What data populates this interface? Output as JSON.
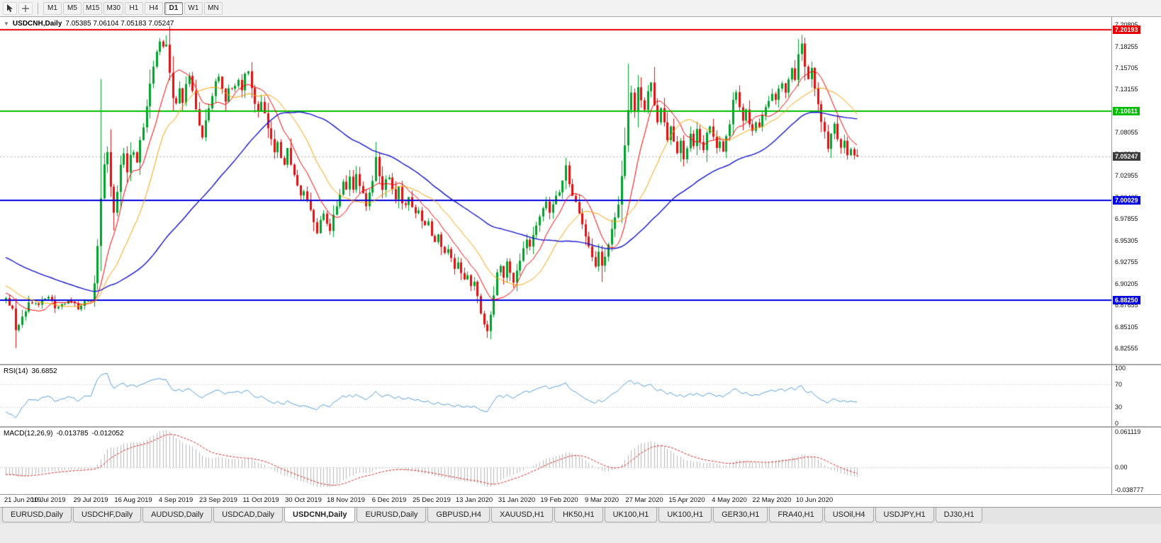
{
  "toolbar": {
    "timeframes": [
      "M1",
      "M5",
      "M15",
      "M30",
      "H1",
      "H4",
      "D1",
      "W1",
      "MN"
    ],
    "active_timeframe": "D1"
  },
  "chart_header": {
    "collapse_icon": "▼",
    "symbol": "USDCNH,Daily",
    "ohlc": "7.05385 7.06104 7.05183 7.05247"
  },
  "rsi_panel": {
    "label": "RSI(14)",
    "value": "36.6852"
  },
  "macd_panel": {
    "label": "MACD(12,26,9)",
    "value_main": "-0.013785",
    "value_signal": "-0.012052"
  },
  "tabs": {
    "active_index": 4,
    "items": [
      "EURUSD,Daily",
      "USDCHF,Daily",
      "AUDUSD,Daily",
      "USDCAD,Daily",
      "USDCNH,Daily",
      "EURUSD,Daily",
      "GBPUSD,H4",
      "XAUUSD,H1",
      "HK50,H1",
      "UK100,H1",
      "UK100,H1",
      "GER30,H1",
      "FRA40,H1",
      "USOil,H4",
      "USDJPY,H1",
      "DJ30,H1"
    ]
  },
  "colors": {
    "up": "#00A029",
    "down": "#E01010",
    "ma_fast": "#FF0000",
    "ma_mid": "#FFA000",
    "ma_slow": "#1515CF",
    "rsi_line": "#58A0D8",
    "macd_hist": "#B8B8B8",
    "macd_signal": "#E02020",
    "current_price_label_bg": "#3A3A3A"
  },
  "chart_data": {
    "type": "candlestick",
    "symbol": "USDCNH",
    "timeframe": "Daily",
    "visible_bars": 261,
    "x_tick_bar_interval": 13,
    "x_tick_labels": [
      "21 Jun 2019",
      "10 Jul 2019",
      "29 Jul 2019",
      "16 Aug 2019",
      "4 Sep 2019",
      "23 Sep 2019",
      "11 Oct 2019",
      "30 Oct 2019",
      "18 Nov 2019",
      "6 Dec 2019",
      "25 Dec 2019",
      "13 Jan 2020",
      "31 Jan 2020",
      "19 Feb 2020",
      "9 Mar 2020",
      "27 Mar 2020",
      "15 Apr 2020",
      "4 May 2020",
      "22 May 2020",
      "10 Jun 2020"
    ],
    "y_axis_ticks": [
      "7.20805",
      "7.18255",
      "7.15705",
      "7.13155",
      "7.10605",
      "7.08055",
      "7.05505",
      "7.02955",
      "7.00405",
      "6.97855",
      "6.95305",
      "6.92755",
      "6.90205",
      "6.87655",
      "6.85105",
      "6.82555"
    ],
    "price_range_top": 7.2173,
    "price_range_bottom": 6.8072,
    "horizontal_lines": [
      {
        "price": 7.20193,
        "label": "7.20193",
        "color": "#E80000",
        "name": "resistance-line"
      },
      {
        "price": 7.10611,
        "label": "7.10611",
        "color": "#00BE00",
        "name": "mid-level-line"
      },
      {
        "price": 7.00029,
        "label": "7.00029",
        "color": "#0000E0",
        "name": "support-line-1"
      },
      {
        "price": 6.8825,
        "label": "6.88250",
        "color": "#0000E0",
        "name": "support-line-2"
      }
    ],
    "current_price": {
      "value": 7.05247,
      "label": "7.05247"
    },
    "last_candle": {
      "open": 7.05385,
      "high": 7.06104,
      "low": 7.05183,
      "close": 7.05247
    },
    "moving_averages": [
      {
        "name": "fast",
        "period": 10,
        "color": "#FF0000"
      },
      {
        "name": "medium",
        "period": 20,
        "color": "#FFA000"
      },
      {
        "name": "slow",
        "period": 56,
        "color": "#1515CF"
      }
    ],
    "rsi": {
      "period": 14,
      "current": 36.6852,
      "axis": [
        "100",
        "70",
        "30",
        "0"
      ],
      "range": [
        0,
        100
      ],
      "levels": [
        70,
        30
      ]
    },
    "macd": {
      "fast": 12,
      "slow": 26,
      "signal": 9,
      "current_main": -0.013785,
      "current_signal": -0.012052,
      "axis_top_label": "0.061119",
      "axis_zero_label": "0.00",
      "axis_bottom_label": "-0.038777",
      "range": [
        -0.0388,
        0.0611
      ]
    },
    "wick_events": [
      {
        "i": 3,
        "low": 6.826
      },
      {
        "i": 29,
        "high": 7.144
      },
      {
        "i": 33,
        "low": 6.965
      },
      {
        "i": 49,
        "high": 7.1955
      },
      {
        "i": 113,
        "high": 7.064
      },
      {
        "i": 147,
        "low": 6.838
      },
      {
        "i": 171,
        "high": 7.051
      },
      {
        "i": 182,
        "low": 6.904
      },
      {
        "i": 190,
        "high": 7.162
      },
      {
        "i": 243,
        "high": 7.196
      }
    ],
    "close_anchors": [
      [
        -60,
        6.988
      ],
      [
        -45,
        6.966
      ],
      [
        -30,
        6.94
      ],
      [
        -15,
        6.908
      ],
      [
        -5,
        6.892
      ],
      [
        -1,
        6.886
      ],
      [
        0,
        6.884
      ],
      [
        2,
        6.87
      ],
      [
        3,
        6.848
      ],
      [
        5,
        6.862
      ],
      [
        7,
        6.88
      ],
      [
        10,
        6.878
      ],
      [
        13,
        6.884
      ],
      [
        16,
        6.872
      ],
      [
        19,
        6.88
      ],
      [
        22,
        6.874
      ],
      [
        25,
        6.88
      ],
      [
        26,
        6.884
      ],
      [
        27,
        6.902
      ],
      [
        28,
        6.948
      ],
      [
        29,
        7.002
      ],
      [
        30,
        7.042
      ],
      [
        31,
        7.058
      ],
      [
        32,
        7.018
      ],
      [
        33,
        6.986
      ],
      [
        34,
        7.008
      ],
      [
        35,
        7.042
      ],
      [
        36,
        7.058
      ],
      [
        37,
        7.036
      ],
      [
        38,
        7.056
      ],
      [
        39,
        7.06
      ],
      [
        40,
        7.046
      ],
      [
        41,
        7.072
      ],
      [
        42,
        7.09
      ],
      [
        43,
        7.112
      ],
      [
        44,
        7.136
      ],
      [
        45,
        7.156
      ],
      [
        46,
        7.176
      ],
      [
        47,
        7.186
      ],
      [
        48,
        7.18
      ],
      [
        49,
        7.188
      ],
      [
        50,
        7.152
      ],
      [
        51,
        7.124
      ],
      [
        52,
        7.114
      ],
      [
        53,
        7.13
      ],
      [
        54,
        7.118
      ],
      [
        55,
        7.136
      ],
      [
        56,
        7.146
      ],
      [
        57,
        7.13
      ],
      [
        58,
        7.108
      ],
      [
        59,
        7.09
      ],
      [
        60,
        7.076
      ],
      [
        61,
        7.092
      ],
      [
        62,
        7.11
      ],
      [
        63,
        7.126
      ],
      [
        64,
        7.14
      ],
      [
        65,
        7.148
      ],
      [
        66,
        7.13
      ],
      [
        67,
        7.116
      ],
      [
        68,
        7.13
      ],
      [
        70,
        7.134
      ],
      [
        71,
        7.144
      ],
      [
        72,
        7.134
      ],
      [
        73,
        7.148
      ],
      [
        74,
        7.15
      ],
      [
        75,
        7.134
      ],
      [
        76,
        7.116
      ],
      [
        77,
        7.104
      ],
      [
        78,
        7.116
      ],
      [
        79,
        7.1
      ],
      [
        80,
        7.086
      ],
      [
        81,
        7.07
      ],
      [
        82,
        7.06
      ],
      [
        83,
        7.072
      ],
      [
        84,
        7.054
      ],
      [
        85,
        7.042
      ],
      [
        86,
        7.06
      ],
      [
        87,
        7.046
      ],
      [
        88,
        7.03
      ],
      [
        89,
        7.016
      ],
      [
        90,
        7.004
      ],
      [
        91,
        7.012
      ],
      [
        92,
        6.998
      ],
      [
        93,
        6.986
      ],
      [
        94,
        6.974
      ],
      [
        95,
        6.962
      ],
      [
        96,
        6.976
      ],
      [
        97,
        6.988
      ],
      [
        98,
        6.97
      ],
      [
        99,
        6.962
      ],
      [
        100,
        6.98
      ],
      [
        101,
        6.996
      ],
      [
        102,
        7.01
      ],
      [
        103,
        7.022
      ],
      [
        104,
        7.012
      ],
      [
        105,
        7.028
      ],
      [
        106,
        7.016
      ],
      [
        107,
        7.032
      ],
      [
        108,
        7.02
      ],
      [
        109,
        7.006
      ],
      [
        110,
        6.996
      ],
      [
        111,
        7.008
      ],
      [
        112,
        7.024
      ],
      [
        113,
        7.05
      ],
      [
        114,
        7.028
      ],
      [
        115,
        7.012
      ],
      [
        116,
        7.026
      ],
      [
        117,
        7.03
      ],
      [
        118,
        7.016
      ],
      [
        119,
        7.004
      ],
      [
        120,
        7.014
      ],
      [
        121,
        7.0
      ],
      [
        122,
        6.992
      ],
      [
        123,
        7.006
      ],
      [
        124,
        6.994
      ],
      [
        125,
        6.982
      ],
      [
        126,
        6.992
      ],
      [
        127,
        6.978
      ],
      [
        128,
        6.968
      ],
      [
        129,
        6.976
      ],
      [
        130,
        6.96
      ],
      [
        131,
        6.95
      ],
      [
        132,
        6.96
      ],
      [
        133,
        6.946
      ],
      [
        134,
        6.936
      ],
      [
        135,
        6.946
      ],
      [
        136,
        6.93
      ],
      [
        137,
        6.92
      ],
      [
        138,
        6.93
      ],
      [
        139,
        6.916
      ],
      [
        140,
        6.904
      ],
      [
        141,
        6.912
      ],
      [
        142,
        6.896
      ],
      [
        143,
        6.904
      ],
      [
        144,
        6.886
      ],
      [
        145,
        6.87
      ],
      [
        146,
        6.856
      ],
      [
        147,
        6.846
      ],
      [
        148,
        6.864
      ],
      [
        149,
        6.888
      ],
      [
        150,
        6.914
      ],
      [
        151,
        6.926
      ],
      [
        152,
        6.912
      ],
      [
        153,
        6.926
      ],
      [
        154,
        6.914
      ],
      [
        155,
        6.906
      ],
      [
        156,
        6.918
      ],
      [
        157,
        6.93
      ],
      [
        158,
        6.942
      ],
      [
        159,
        6.952
      ],
      [
        160,
        6.944
      ],
      [
        161,
        6.958
      ],
      [
        162,
        6.968
      ],
      [
        163,
        6.98
      ],
      [
        164,
        6.99
      ],
      [
        165,
        6.996
      ],
      [
        166,
        6.986
      ],
      [
        167,
        6.996
      ],
      [
        168,
        7.006
      ],
      [
        169,
        7.012
      ],
      [
        170,
        7.024
      ],
      [
        171,
        7.04
      ],
      [
        172,
        7.022
      ],
      [
        173,
        7.008
      ],
      [
        174,
        6.996
      ],
      [
        175,
        6.986
      ],
      [
        176,
        6.972
      ],
      [
        177,
        6.96
      ],
      [
        178,
        6.948
      ],
      [
        179,
        6.936
      ],
      [
        180,
        6.924
      ],
      [
        181,
        6.938
      ],
      [
        182,
        6.922
      ],
      [
        183,
        6.934
      ],
      [
        184,
        6.95
      ],
      [
        185,
        6.964
      ],
      [
        186,
        6.98
      ],
      [
        187,
        6.998
      ],
      [
        188,
        7.026
      ],
      [
        189,
        7.062
      ],
      [
        190,
        7.108
      ],
      [
        191,
        7.126
      ],
      [
        192,
        7.106
      ],
      [
        193,
        7.134
      ],
      [
        194,
        7.118
      ],
      [
        195,
        7.108
      ],
      [
        196,
        7.13
      ],
      [
        197,
        7.138
      ],
      [
        198,
        7.116
      ],
      [
        199,
        7.096
      ],
      [
        200,
        7.112
      ],
      [
        201,
        7.09
      ],
      [
        202,
        7.074
      ],
      [
        203,
        7.088
      ],
      [
        204,
        7.07
      ],
      [
        205,
        7.056
      ],
      [
        206,
        7.068
      ],
      [
        207,
        7.05
      ],
      [
        208,
        7.062
      ],
      [
        209,
        7.076
      ],
      [
        210,
        7.066
      ],
      [
        211,
        7.082
      ],
      [
        212,
        7.07
      ],
      [
        213,
        7.06
      ],
      [
        214,
        7.078
      ],
      [
        215,
        7.088
      ],
      [
        216,
        7.074
      ],
      [
        217,
        7.06
      ],
      [
        218,
        7.072
      ],
      [
        219,
        7.06
      ],
      [
        220,
        7.076
      ],
      [
        221,
        7.09
      ],
      [
        222,
        7.118
      ],
      [
        223,
        7.128
      ],
      [
        224,
        7.11
      ],
      [
        225,
        7.096
      ],
      [
        226,
        7.108
      ],
      [
        227,
        7.09
      ],
      [
        228,
        7.08
      ],
      [
        229,
        7.094
      ],
      [
        230,
        7.084
      ],
      [
        231,
        7.098
      ],
      [
        232,
        7.108
      ],
      [
        233,
        7.118
      ],
      [
        234,
        7.128
      ],
      [
        235,
        7.116
      ],
      [
        236,
        7.132
      ],
      [
        237,
        7.142
      ],
      [
        238,
        7.13
      ],
      [
        239,
        7.146
      ],
      [
        240,
        7.156
      ],
      [
        241,
        7.146
      ],
      [
        242,
        7.17
      ],
      [
        243,
        7.186
      ],
      [
        244,
        7.16
      ],
      [
        245,
        7.146
      ],
      [
        246,
        7.158
      ],
      [
        247,
        7.136
      ],
      [
        248,
        7.116
      ],
      [
        249,
        7.096
      ],
      [
        250,
        7.08
      ],
      [
        251,
        7.06
      ],
      [
        252,
        7.078
      ],
      [
        253,
        7.088
      ],
      [
        254,
        7.07
      ],
      [
        255,
        7.06
      ],
      [
        256,
        7.072
      ],
      [
        257,
        7.056
      ],
      [
        258,
        7.064
      ],
      [
        259,
        7.056
      ],
      [
        260,
        7.05247
      ]
    ]
  }
}
